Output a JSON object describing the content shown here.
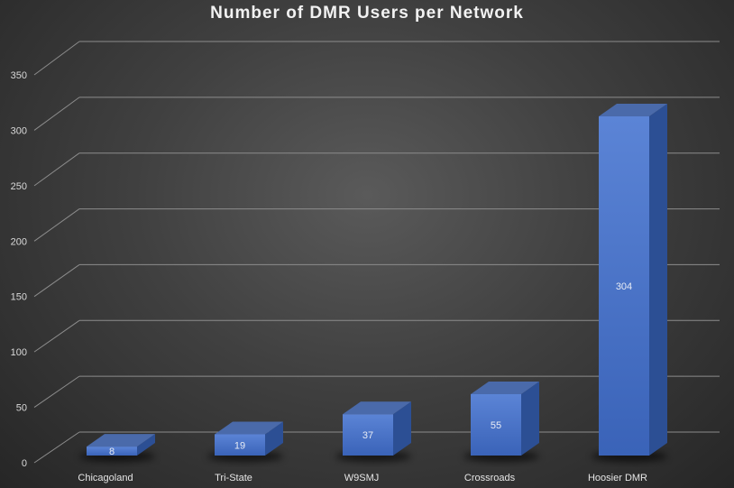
{
  "chart_data": {
    "type": "bar",
    "title": "Number of DMR Users per Network",
    "categories": [
      "Chicagoland",
      "Tri-State",
      "W9SMJ",
      "Crossroads",
      "Hoosier DMR"
    ],
    "values": [
      8,
      19,
      37,
      55,
      304
    ],
    "ylim": [
      0,
      350
    ],
    "yticks": [
      0,
      50,
      100,
      150,
      200,
      250,
      300,
      350
    ],
    "xlabel": "",
    "ylabel": "",
    "grid": true,
    "style": "3d-column",
    "bar_color": "#4472c4"
  }
}
